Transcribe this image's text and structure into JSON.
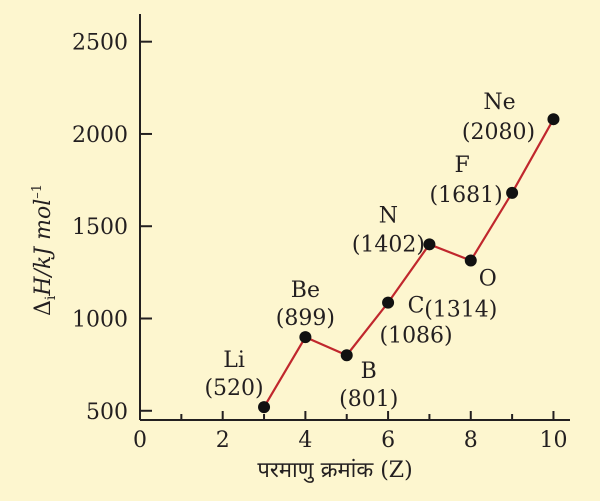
{
  "chart_data": {
    "type": "line",
    "xlabel": "परमाणु क्रमांक (Z)",
    "ylabel_main": "Δ",
    "ylabel_sub": "i",
    "ylabel_rest": "H/kJ mol",
    "ylabel_sup": "–1",
    "xlim": [
      0,
      10.4
    ],
    "ylim": [
      450,
      2650
    ],
    "x_ticks": [
      0,
      2,
      4,
      6,
      8,
      10
    ],
    "y_ticks": [
      500,
      1000,
      1500,
      2000,
      2500
    ],
    "line_color": "#c0272d",
    "marker_color": "#111111",
    "points": [
      {
        "x": 3,
        "y": 520,
        "symbol": "Li",
        "value_label": "(520)"
      },
      {
        "x": 4,
        "y": 899,
        "symbol": "Be",
        "value_label": "(899)"
      },
      {
        "x": 5,
        "y": 801,
        "symbol": "B",
        "value_label": "(801)"
      },
      {
        "x": 6,
        "y": 1086,
        "symbol": "C",
        "value_label": "(1086)"
      },
      {
        "x": 7,
        "y": 1402,
        "symbol": "N",
        "value_label": "(1402)"
      },
      {
        "x": 8,
        "y": 1314,
        "symbol": "O",
        "value_label": "(1314)"
      },
      {
        "x": 9,
        "y": 1681,
        "symbol": "F",
        "value_label": "(1681)"
      },
      {
        "x": 10,
        "y": 2080,
        "symbol": "Ne",
        "value_label": "(2080)"
      }
    ]
  }
}
